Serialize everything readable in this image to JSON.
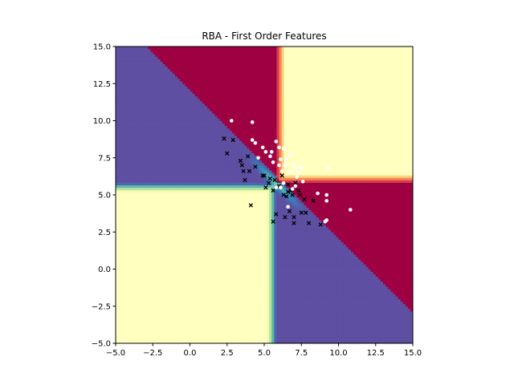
{
  "chart_data": {
    "type": "scatter",
    "title": "RBA - First Order Features",
    "xlabel": "",
    "ylabel": "",
    "xlim": [
      -5,
      15
    ],
    "ylim": [
      -5,
      15
    ],
    "x_ticks": [
      "−5.0",
      "−2.5",
      "0.0",
      "2.5",
      "5.0",
      "7.5",
      "10.0",
      "12.5",
      "15.0"
    ],
    "y_ticks": [
      "−5.0",
      "−2.5",
      "0.0",
      "2.5",
      "5.0",
      "7.5",
      "10.0",
      "12.5",
      "15.0"
    ],
    "grid": false,
    "legend": "none",
    "background": {
      "type": "heatmap",
      "colormap": "Spectral",
      "colors": {
        "low": "#5e4fa2",
        "high": "#9e0142",
        "mid": "#ffffbf"
      },
      "boundary_line": {
        "slope": -1,
        "intercept": 12
      },
      "saddle_center": [
        5.8,
        5.8
      ]
    },
    "series": [
      {
        "marker": "x",
        "color": "#000000",
        "points": [
          [
            2.3,
            8.8
          ],
          [
            2.5,
            7.8
          ],
          [
            2.9,
            8.7
          ],
          [
            3.4,
            7.3
          ],
          [
            3.5,
            7.0
          ],
          [
            3.6,
            6.6
          ],
          [
            3.7,
            6.0
          ],
          [
            3.9,
            7.6
          ],
          [
            4.0,
            6.6
          ],
          [
            4.1,
            4.3
          ],
          [
            4.4,
            6.9
          ],
          [
            4.9,
            6.3
          ],
          [
            5.0,
            6.3
          ],
          [
            5.1,
            5.5
          ],
          [
            5.3,
            5.8
          ],
          [
            5.4,
            6.1
          ],
          [
            5.6,
            5.3
          ],
          [
            5.7,
            6.0
          ],
          [
            5.6,
            3.2
          ],
          [
            5.8,
            3.7
          ],
          [
            6.0,
            5.6
          ],
          [
            6.2,
            6.3
          ],
          [
            6.3,
            5.0
          ],
          [
            6.4,
            3.5
          ],
          [
            6.5,
            4.9
          ],
          [
            6.6,
            5.7
          ],
          [
            6.6,
            5.2
          ],
          [
            6.7,
            3.9
          ],
          [
            6.8,
            5.3
          ],
          [
            6.9,
            5.0
          ],
          [
            7.0,
            3.1
          ],
          [
            7.1,
            5.8
          ],
          [
            7.3,
            5.3
          ],
          [
            7.4,
            5.0
          ],
          [
            7.5,
            3.8
          ],
          [
            7.7,
            4.7
          ],
          [
            7.8,
            3.8
          ],
          [
            8.0,
            3.1
          ],
          [
            8.3,
            4.6
          ],
          [
            8.8,
            3.0
          ],
          [
            7.0,
            3.5
          ]
        ]
      },
      {
        "marker": "o",
        "color": "#ffffff",
        "points": [
          [
            2.8,
            10.0
          ],
          [
            4.2,
            9.9
          ],
          [
            4.2,
            8.7
          ],
          [
            4.4,
            8.5
          ],
          [
            4.6,
            7.5
          ],
          [
            4.9,
            8.2
          ],
          [
            5.1,
            7.9
          ],
          [
            5.4,
            7.6
          ],
          [
            5.5,
            7.9
          ],
          [
            5.6,
            7.2
          ],
          [
            5.8,
            8.6
          ],
          [
            6.0,
            8.2
          ],
          [
            6.1,
            7.4
          ],
          [
            6.3,
            8.1
          ],
          [
            6.4,
            7.0
          ],
          [
            6.5,
            7.4
          ],
          [
            6.7,
            7.7
          ],
          [
            6.8,
            6.6
          ],
          [
            7.0,
            7.0
          ],
          [
            7.2,
            6.2
          ],
          [
            7.4,
            6.9
          ],
          [
            7.5,
            6.8
          ],
          [
            7.6,
            5.9
          ],
          [
            8.6,
            5.1
          ],
          [
            9.2,
            5.0
          ],
          [
            9.2,
            4.6
          ],
          [
            9.2,
            3.3
          ],
          [
            9.1,
            3.2
          ],
          [
            9.3,
            6.8
          ],
          [
            10.8,
            4.0
          ],
          [
            6.6,
            4.2
          ],
          [
            6.1,
            5.5
          ],
          [
            6.3,
            5.8
          ],
          [
            5.8,
            5.5
          ],
          [
            6.2,
            6.6
          ],
          [
            6.9,
            5.4
          ],
          [
            7.1,
            5.6
          ],
          [
            7.3,
            6.5
          ],
          [
            6.0,
            7.0
          ]
        ]
      }
    ]
  }
}
